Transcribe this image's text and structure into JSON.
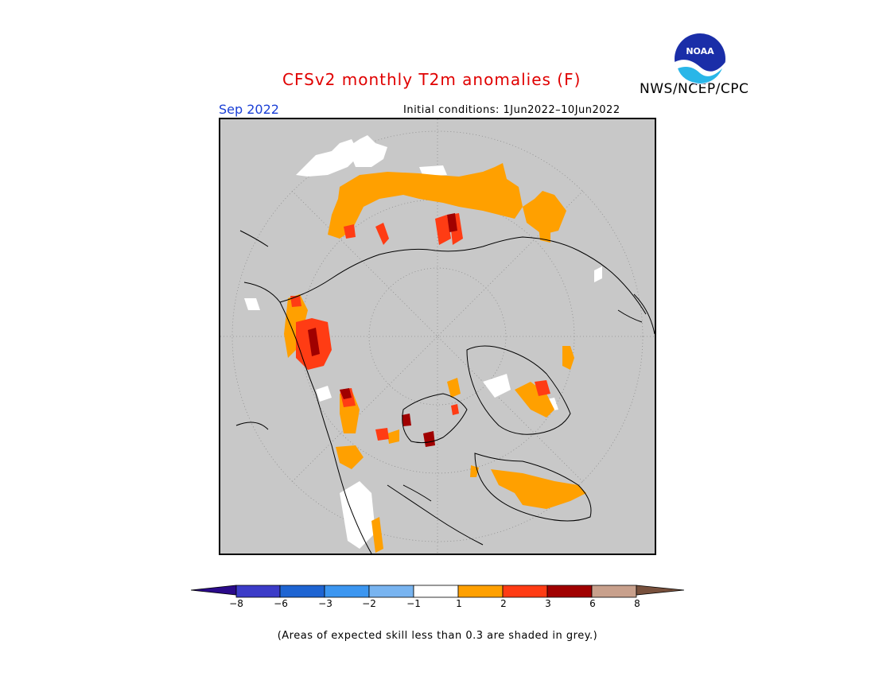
{
  "title": "CFSv2 monthly T2m anomalies (F)",
  "org": "NWS/NCEP/CPC",
  "logo_text": "NOAA",
  "month": "Sep 2022",
  "initial_conditions": "Initial conditions: 1Jun2022–10Jun2022",
  "footnote": "(Areas of expected skill less than 0.3 are shaded in grey.)",
  "colors": {
    "grey": "#c8c8c8",
    "lt_neg8": "#2a0a8a",
    "neg8_neg6": "#3c3cc8",
    "neg6_neg3": "#1e64d2",
    "neg3_neg2": "#3c96f0",
    "neg2_neg1": "#78b4f0",
    "neg1_1": "#ffffff",
    "1_2": "#ffa000",
    "2_3": "#ff3c14",
    "3_6": "#a00000",
    "6_8": "#c8a08c",
    "gt_8": "#78503c"
  },
  "colorbar": {
    "labels": [
      "−8",
      "−6",
      "−3",
      "−2",
      "−1",
      "1",
      "2",
      "3",
      "6",
      "8"
    ]
  }
}
